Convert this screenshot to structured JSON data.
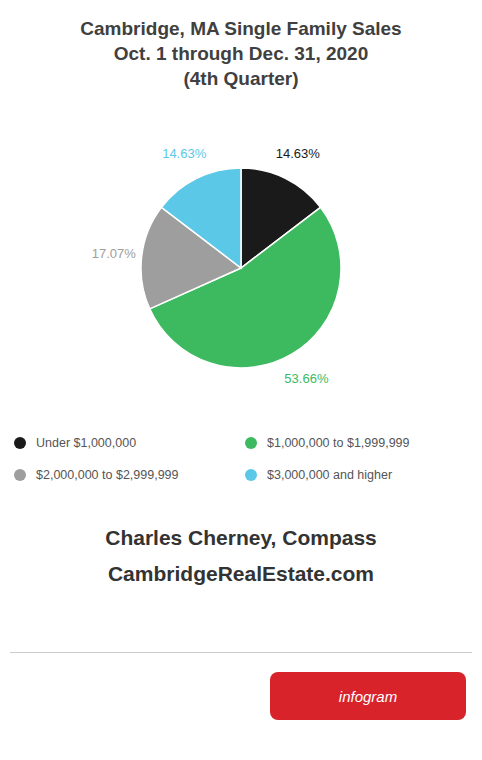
{
  "chart_data": {
    "type": "pie",
    "title": "Cambridge, MA Single Family Sales",
    "subtitle": [
      "Oct. 1 through Dec. 31, 2020",
      "(4th Quarter)"
    ],
    "categories": [
      "Under $1,000,000",
      "$1,000,000 to $1,999,999",
      "$2,000,000 to $2,999,999",
      "$3,000,000 and higher"
    ],
    "values": [
      14.63,
      53.66,
      17.07,
      14.63
    ],
    "value_labels": [
      "14.63%",
      "53.66%",
      "17.07%",
      "14.63%"
    ],
    "colors": [
      "#1a1a1a",
      "#3dba5f",
      "#9e9e9e",
      "#5bc8e8"
    ],
    "data_labels": true,
    "legend": "bottom",
    "annotations": [
      "Charles Cherney, Compass",
      "CambridgeRealEstate.com",
      "infogram"
    ]
  }
}
